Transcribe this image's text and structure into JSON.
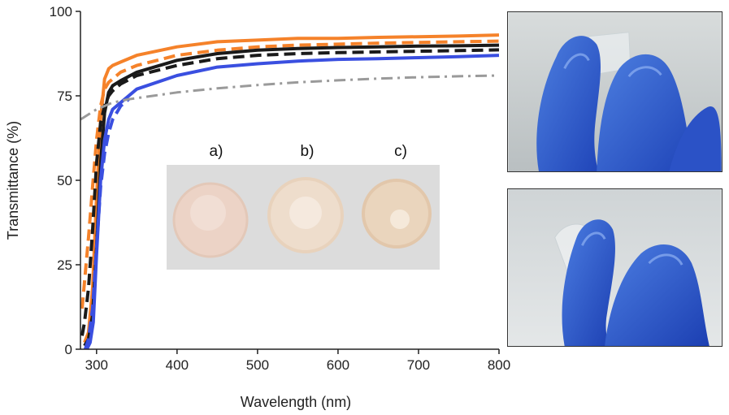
{
  "chart_data": {
    "type": "line",
    "xlabel": "Wavelength (nm)",
    "ylabel": "Transmittance (%)",
    "xlim": [
      280,
      800
    ],
    "ylim": [
      0,
      100
    ],
    "x_ticks": [
      300,
      400,
      500,
      600,
      700,
      800
    ],
    "y_ticks": [
      0,
      25,
      50,
      75,
      100
    ],
    "x_tick_labels": [
      "300",
      "400",
      "500",
      "600",
      "700",
      "800"
    ],
    "y_tick_labels": [
      "0",
      "25",
      "50",
      "75",
      "100"
    ],
    "grid": false,
    "legend": "none",
    "series": [
      {
        "color": "#f5822a",
        "style": "solid",
        "x": [
          285,
          290,
          295,
          300,
          305,
          310,
          315,
          320,
          330,
          350,
          400,
          450,
          500,
          550,
          600,
          650,
          700,
          750,
          800
        ],
        "y": [
          2,
          5,
          18,
          45,
          68,
          80,
          83,
          84,
          85,
          87,
          89.5,
          91,
          91.5,
          92,
          92,
          92.3,
          92.5,
          92.7,
          93
        ]
      },
      {
        "color": "#f5822a",
        "style": "dashed",
        "x": [
          282,
          285,
          290,
          295,
          300,
          305,
          310,
          315,
          320,
          330,
          350,
          400,
          450,
          500,
          550,
          600,
          650,
          700,
          750,
          800
        ],
        "y": [
          12,
          20,
          33,
          48,
          62,
          72,
          77,
          79,
          80,
          82,
          84,
          87,
          88.5,
          89.5,
          90,
          90.3,
          90.6,
          90.8,
          91,
          91.2
        ]
      },
      {
        "color": "#1a1a1a",
        "style": "solid",
        "x": [
          285,
          290,
          295,
          300,
          305,
          310,
          315,
          320,
          330,
          350,
          400,
          450,
          500,
          550,
          600,
          650,
          700,
          750,
          800
        ],
        "y": [
          1,
          3,
          10,
          30,
          55,
          70,
          76,
          78,
          79.5,
          82,
          85.5,
          87.5,
          88.5,
          89,
          89.3,
          89.5,
          89.7,
          89.8,
          90
        ]
      },
      {
        "color": "#1a1a1a",
        "style": "dashed",
        "x": [
          282,
          285,
          290,
          295,
          300,
          305,
          310,
          315,
          320,
          330,
          350,
          400,
          450,
          500,
          550,
          600,
          650,
          700,
          750,
          800
        ],
        "y": [
          4,
          8,
          18,
          35,
          55,
          67,
          72,
          75,
          76.5,
          78.5,
          81,
          84,
          86,
          87,
          87.5,
          87.8,
          88,
          88.2,
          88.4,
          88.6
        ]
      },
      {
        "color": "#3a4fe0",
        "style": "solid",
        "x": [
          288,
          292,
          296,
          300,
          305,
          310,
          315,
          320,
          330,
          350,
          400,
          450,
          500,
          550,
          600,
          650,
          700,
          750,
          800
        ],
        "y": [
          0,
          2,
          8,
          28,
          50,
          62,
          68,
          71,
          73,
          77,
          81,
          83.5,
          84.5,
          85.3,
          85.8,
          86,
          86.3,
          86.6,
          87
        ]
      },
      {
        "color": "#3a4fe0",
        "style": "dashed",
        "x": [
          286,
          290,
          295,
          300,
          305,
          310,
          315,
          320,
          325,
          330,
          340
        ],
        "y": [
          0,
          3,
          12,
          30,
          48,
          58,
          64,
          68,
          70,
          72,
          74
        ]
      },
      {
        "color": "#9a9a9a",
        "style": "dashdot",
        "x": [
          280,
          290,
          300,
          310,
          320,
          340,
          370,
          400,
          450,
          500,
          550,
          600,
          650,
          700,
          750,
          800
        ],
        "y": [
          68,
          69.5,
          71,
          72,
          73,
          74,
          75,
          76,
          77.2,
          78.2,
          79,
          79.6,
          80.1,
          80.5,
          80.8,
          81
        ]
      }
    ]
  },
  "inset": {
    "labels": [
      "a)",
      "b)",
      "c)"
    ]
  }
}
